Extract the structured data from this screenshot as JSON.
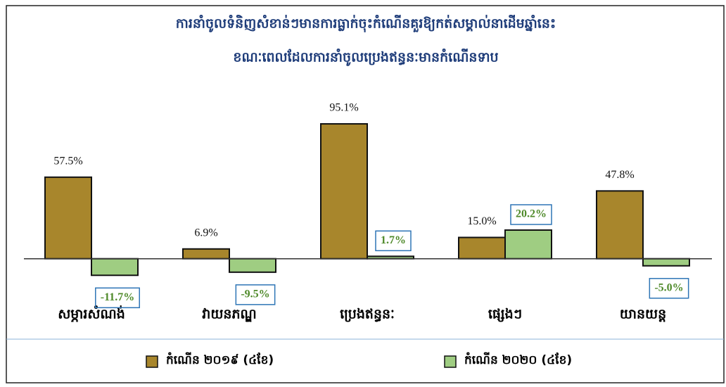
{
  "chart_data": {
    "type": "bar",
    "title": "ការនាំចូលទំនិញសំខាន់ៗមានការធ្លាក់ចុះកំណើនគួរឱ្យកត់សម្គាល់នាដើមឆ្នាំនេះ",
    "subtitle": "ខណៈពេលដែលការនាំចូលប្រេងឥន្ធនៈមានកំណើនទាប",
    "categories": [
      "សម្ភារសំណង់",
      "វាយនភណ្ឌ",
      "ប្រេងឥន្ធនៈ",
      "ផ្សេងៗ",
      "យានយន្ត"
    ],
    "series": [
      {
        "name": "កំណើន ២០១៩ (៤ខែ)",
        "color": "#a8862c",
        "values": [
          57.5,
          6.9,
          95.1,
          15.0,
          47.8
        ],
        "value_labels": [
          "57.5%",
          "6.9%",
          "95.1%",
          "15.0%",
          "47.8%"
        ]
      },
      {
        "name": "កំណើន ២០២០ (៤ខែ)",
        "color": "#9fcd82",
        "values": [
          -11.7,
          -9.5,
          1.7,
          20.2,
          -5.0
        ],
        "value_labels": [
          "-11.7%",
          "-9.5%",
          "1.7%",
          "20.2%",
          "-5.0%"
        ]
      }
    ],
    "ylim": [
      -20,
      110
    ]
  }
}
